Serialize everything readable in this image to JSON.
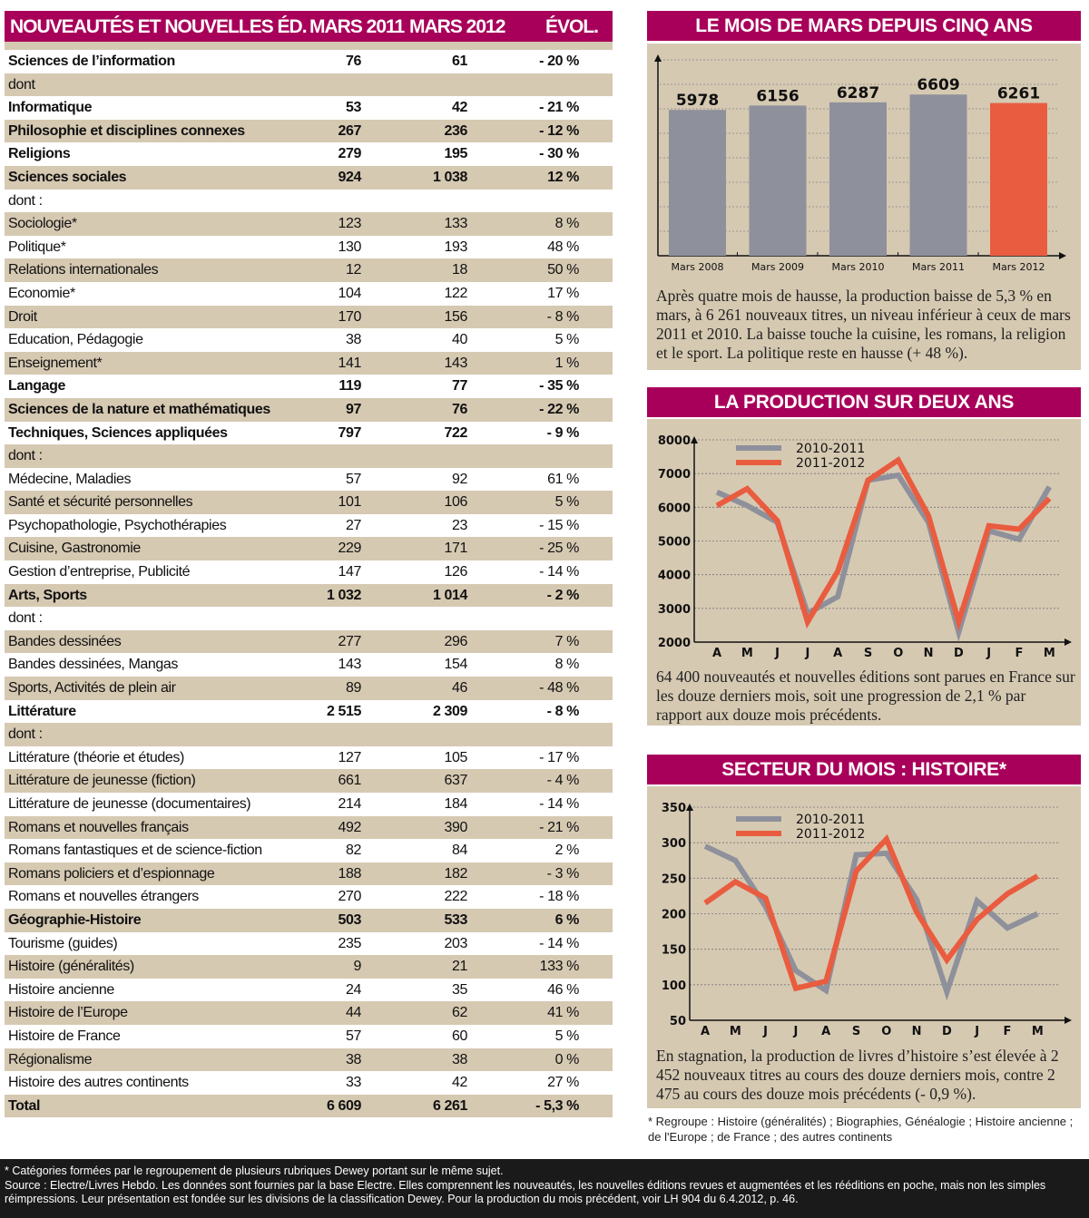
{
  "table": {
    "headers": [
      "NOUVEAUTÉS ET NOUVELLES ÉD.",
      "MARS 2011",
      "MARS  2012",
      "ÉVOL."
    ],
    "rows": [
      {
        "label": "Sciences de l’information",
        "v2011": "76",
        "v2012": "61",
        "evol": "- 20 %",
        "bold": true
      },
      {
        "label": "dont",
        "v2011": "",
        "v2012": "",
        "evol": "",
        "bold": false
      },
      {
        "label": "Informatique",
        "v2011": "53",
        "v2012": "42",
        "evol": "- 21 %",
        "bold": true
      },
      {
        "label": "Philosophie et disciplines connexes",
        "v2011": "267",
        "v2012": "236",
        "evol": "- 12 %",
        "bold": true
      },
      {
        "label": "Religions",
        "v2011": "279",
        "v2012": "195",
        "evol": "- 30 %",
        "bold": true
      },
      {
        "label": "Sciences sociales",
        "v2011": "924",
        "v2012": "1 038",
        "evol": "12 %",
        "bold": true
      },
      {
        "label": "dont :",
        "v2011": "",
        "v2012": "",
        "evol": "",
        "bold": false
      },
      {
        "label": "Sociologie*",
        "v2011": "123",
        "v2012": "133",
        "evol": "8 %",
        "bold": false
      },
      {
        "label": "Politique*",
        "v2011": "130",
        "v2012": "193",
        "evol": "48 %",
        "bold": false
      },
      {
        "label": "Relations internationales",
        "v2011": "12",
        "v2012": "18",
        "evol": "50 %",
        "bold": false
      },
      {
        "label": "Economie*",
        "v2011": "104",
        "v2012": "122",
        "evol": "17 %",
        "bold": false
      },
      {
        "label": "Droit",
        "v2011": "170",
        "v2012": "156",
        "evol": "- 8 %",
        "bold": false
      },
      {
        "label": "Education, Pédagogie",
        "v2011": "38",
        "v2012": "40",
        "evol": "5 %",
        "bold": false
      },
      {
        "label": "Enseignement*",
        "v2011": "141",
        "v2012": "143",
        "evol": "1 %",
        "bold": false
      },
      {
        "label": "Langage",
        "v2011": "119",
        "v2012": "77",
        "evol": "- 35 %",
        "bold": true
      },
      {
        "label": "Sciences de la nature et mathématiques",
        "v2011": "97",
        "v2012": "76",
        "evol": "- 22 %",
        "bold": true
      },
      {
        "label": "Techniques, Sciences appliquées",
        "v2011": "797",
        "v2012": "722",
        "evol": "- 9 %",
        "bold": true
      },
      {
        "label": "dont :",
        "v2011": "",
        "v2012": "",
        "evol": "",
        "bold": false
      },
      {
        "label": "Médecine, Maladies",
        "v2011": "57",
        "v2012": "92",
        "evol": "61 %",
        "bold": false
      },
      {
        "label": "Santé et sécurité personnelles",
        "v2011": "101",
        "v2012": "106",
        "evol": "5 %",
        "bold": false
      },
      {
        "label": "Psychopathologie, Psychothérapies",
        "v2011": "27",
        "v2012": "23",
        "evol": "- 15 %",
        "bold": false
      },
      {
        "label": "Cuisine, Gastronomie",
        "v2011": "229",
        "v2012": "171",
        "evol": "- 25 %",
        "bold": false
      },
      {
        "label": "Gestion d’entreprise, Publicité",
        "v2011": "147",
        "v2012": "126",
        "evol": "- 14 %",
        "bold": false
      },
      {
        "label": "Arts, Sports",
        "v2011": "1 032",
        "v2012": "1 014",
        "evol": "- 2 %",
        "bold": true
      },
      {
        "label": "dont :",
        "v2011": "",
        "v2012": "",
        "evol": "",
        "bold": false
      },
      {
        "label": "Bandes dessinées",
        "v2011": "277",
        "v2012": "296",
        "evol": "7 %",
        "bold": false
      },
      {
        "label": "Bandes dessinées, Mangas",
        "v2011": "143",
        "v2012": "154",
        "evol": "8 %",
        "bold": false
      },
      {
        "label": "Sports, Activités de plein air",
        "v2011": "89",
        "v2012": "46",
        "evol": "- 48 %",
        "bold": false
      },
      {
        "label": "Littérature",
        "v2011": "2 515",
        "v2012": "2 309",
        "evol": "- 8 %",
        "bold": true
      },
      {
        "label": "dont :",
        "v2011": "",
        "v2012": "",
        "evol": "",
        "bold": false
      },
      {
        "label": "Littérature (théorie et études)",
        "v2011": "127",
        "v2012": "105",
        "evol": "- 17 %",
        "bold": false
      },
      {
        "label": "Littérature de jeunesse (fiction)",
        "v2011": "661",
        "v2012": "637",
        "evol": "- 4 %",
        "bold": false
      },
      {
        "label": "Littérature de jeunesse (documentaires)",
        "v2011": "214",
        "v2012": "184",
        "evol": "- 14 %",
        "bold": false
      },
      {
        "label": "Romans et nouvelles français",
        "v2011": "492",
        "v2012": "390",
        "evol": "- 21 %",
        "bold": false
      },
      {
        "label": "Romans fantastiques et de science-fiction",
        "v2011": "82",
        "v2012": "84",
        "evol": "2 %",
        "bold": false
      },
      {
        "label": "Romans policiers et d’espionnage",
        "v2011": "188",
        "v2012": "182",
        "evol": "- 3 %",
        "bold": false
      },
      {
        "label": "Romans et nouvelles étrangers",
        "v2011": "270",
        "v2012": "222",
        "evol": "- 18 %",
        "bold": false
      },
      {
        "label": "Géographie-Histoire",
        "v2011": "503",
        "v2012": "533",
        "evol": "6 %",
        "bold": true
      },
      {
        "label": "Tourisme (guides)",
        "v2011": "235",
        "v2012": "203",
        "evol": "- 14 %",
        "bold": false
      },
      {
        "label": "Histoire (généralités)",
        "v2011": "9",
        "v2012": "21",
        "evol": "133 %",
        "bold": false
      },
      {
        "label": "Histoire ancienne",
        "v2011": "24",
        "v2012": "35",
        "evol": "46 %",
        "bold": false
      },
      {
        "label": "Histoire de l’Europe",
        "v2011": "44",
        "v2012": "62",
        "evol": "41 %",
        "bold": false
      },
      {
        "label": "Histoire de France",
        "v2011": "57",
        "v2012": "60",
        "evol": "5 %",
        "bold": false
      },
      {
        "label": "Régionalisme",
        "v2011": "38",
        "v2012": "38",
        "evol": "0 %",
        "bold": false
      },
      {
        "label": "Histoire des autres continents",
        "v2011": "33",
        "v2012": "42",
        "evol": "27 %",
        "bold": false
      },
      {
        "label": "Total",
        "v2011": "6 609",
        "v2012": "6 261",
        "evol": "- 5,3 %",
        "bold": true
      }
    ]
  },
  "panels": [
    {
      "title": "LE MOIS DE MARS DEPUIS CINQ ANS",
      "text": "Après quatre mois de hausse, la production baisse de 5,3 % en mars, à 6 261 nouveaux titres, un niveau inférieur à ceux de mars 2011 et 2010. La baisse touche la cuisine, les romans, la religion et le sport. La politique reste en hausse (+ 48 %)."
    },
    {
      "title": "LA PRODUCTION SUR DEUX ANS",
      "text": "64 400 nouveautés et nouvelles éditions sont parues en France sur les douze derniers mois, soit une progression de 2,1 % par rapport aux douze mois précédents."
    },
    {
      "title": "SECTEUR DU MOIS : HISTOIRE*",
      "text": "En stagnation, la production de livres d’histoire s’est élevée à 2 452 nouveaux titres au cours des douze derniers mois, contre 2 475 au cours des douze mois précédents (- 0,9 %)."
    }
  ],
  "colors": {
    "header": "#a8005a",
    "beige": "#d6c9b2",
    "grey": "#8e909b",
    "orange": "#e95c3f"
  },
  "chart_data": [
    {
      "type": "bar",
      "title": "LE MOIS DE MARS DEPUIS CINQ ANS",
      "categories": [
        "Mars 2008",
        "Mars 2009",
        "Mars 2010",
        "Mars 2011",
        "Mars 2012"
      ],
      "values": [
        5978,
        6156,
        6287,
        6609,
        6261
      ],
      "labels": [
        "5978",
        "6156",
        "6287",
        "6609",
        "6261"
      ],
      "highlight": "Mars 2012",
      "ylim": [
        0,
        7800
      ],
      "grid": true
    },
    {
      "type": "line",
      "title": "LA PRODUCTION SUR DEUX ANS",
      "categories": [
        "A",
        "M",
        "J",
        "J",
        "A",
        "S",
        "O",
        "N",
        "D",
        "J",
        "F",
        "M"
      ],
      "yticks": [
        2000,
        3000,
        4000,
        5000,
        6000,
        7000,
        8000
      ],
      "ylim": [
        2000,
        8000
      ],
      "grid": true,
      "legend": "top-left",
      "series": [
        {
          "name": "2010-2011",
          "color": "#8e909b",
          "values": [
            6450,
            6050,
            5550,
            2850,
            3350,
            6800,
            6950,
            5550,
            2300,
            5300,
            5050,
            6609
          ]
        },
        {
          "name": "2011-2012",
          "color": "#e95c3f",
          "values": [
            6050,
            6550,
            5600,
            2600,
            4100,
            6800,
            7400,
            5750,
            2600,
            5450,
            5350,
            6261
          ]
        }
      ]
    },
    {
      "type": "line",
      "title": "SECTEUR DU MOIS : HISTOIRE*",
      "categories": [
        "A",
        "M",
        "J",
        "J",
        "A",
        "S",
        "O",
        "N",
        "D",
        "J",
        "F",
        "M"
      ],
      "yticks": [
        50,
        100,
        150,
        200,
        250,
        300,
        350
      ],
      "ylim": [
        50,
        350
      ],
      "grid": true,
      "legend": "top-left",
      "series": [
        {
          "name": "2010-2011",
          "color": "#8e909b",
          "values": [
            295,
            275,
            210,
            120,
            92,
            283,
            285,
            220,
            90,
            218,
            180,
            200
          ]
        },
        {
          "name": "2011-2012",
          "color": "#e95c3f",
          "values": [
            215,
            245,
            222,
            95,
            105,
            260,
            305,
            202,
            135,
            192,
            228,
            253
          ]
        }
      ]
    }
  ],
  "footnote": "* Regroupe : Histoire (généralités) ; Biographies, Généalogie ; Histoire ancienne ; de l'Europe ; de France ; des autres continents",
  "footer": {
    "line1": "* Catégories formées par le regroupement de plusieurs rubriques Dewey portant sur le même sujet.",
    "line2": "Source : Electre/Livres Hebdo. Les données sont fournies par la base Electre. Elles comprennent les nouveautés, les nouvelles éditions revues et augmentées et les rééditions en poche, mais non les simples réimpressions. Leur présentation est fondée sur les divisions de la classification Dewey. Pour la production du mois précédent, voir LH 904 du 6.4.2012, p. 46."
  }
}
